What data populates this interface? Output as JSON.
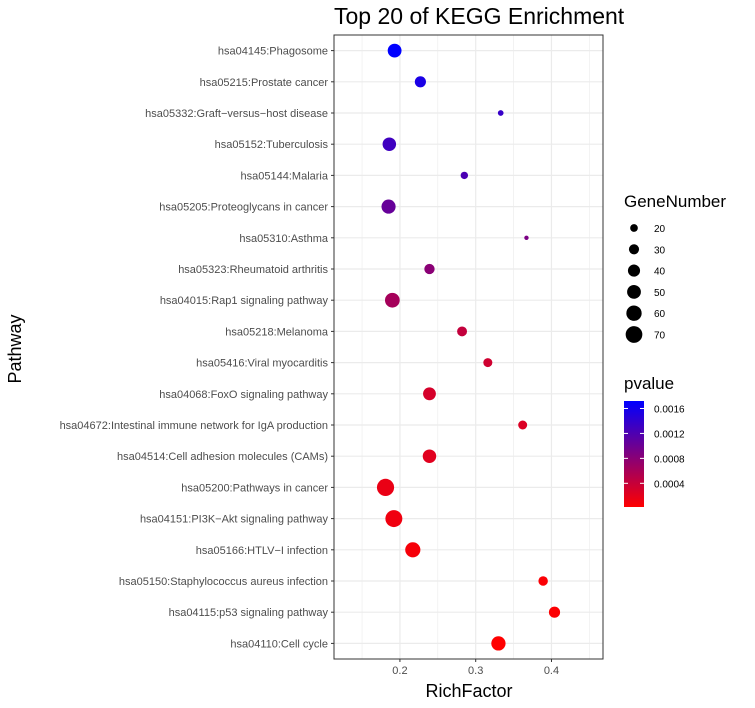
{
  "chart_data": {
    "type": "scatter",
    "title": "Top 20 of KEGG Enrichment",
    "xlabel": "RichFactor",
    "ylabel": "Pathway",
    "xlim": [
      0.113,
      0.468
    ],
    "xticks": [
      0.2,
      0.3,
      0.4
    ],
    "xtick_labels": [
      "0.2",
      "0.3",
      "0.4"
    ],
    "grid": true,
    "points": [
      {
        "pathway": "hsa04145:Phagosome",
        "rich_factor": 0.193,
        "gene_number": 50,
        "pvalue": 0.00172
      },
      {
        "pathway": "hsa05215:Prostate cancer",
        "rich_factor": 0.227,
        "gene_number": 35,
        "pvalue": 0.00155
      },
      {
        "pathway": "hsa05332:Graft−versus−host disease",
        "rich_factor": 0.333,
        "gene_number": 14,
        "pvalue": 0.00135
      },
      {
        "pathway": "hsa05152:Tuberculosis",
        "rich_factor": 0.186,
        "gene_number": 48,
        "pvalue": 0.0013
      },
      {
        "pathway": "hsa05144:Malaria",
        "rich_factor": 0.285,
        "gene_number": 19,
        "pvalue": 0.00122
      },
      {
        "pathway": "hsa05205:Proteoglycans in cancer",
        "rich_factor": 0.185,
        "gene_number": 52,
        "pvalue": 0.00104
      },
      {
        "pathway": "hsa05310:Asthma",
        "rich_factor": 0.367,
        "gene_number": 11,
        "pvalue": 0.0009
      },
      {
        "pathway": "hsa05323:Rheumatoid arthritis",
        "rich_factor": 0.239,
        "gene_number": 31,
        "pvalue": 0.0008
      },
      {
        "pathway": "hsa04015:Rap1 signaling pathway",
        "rich_factor": 0.19,
        "gene_number": 56,
        "pvalue": 0.00062
      },
      {
        "pathway": "hsa05218:Melanoma",
        "rich_factor": 0.282,
        "gene_number": 29,
        "pvalue": 0.00042
      },
      {
        "pathway": "hsa05416:Viral myocarditis",
        "rich_factor": 0.316,
        "gene_number": 25,
        "pvalue": 0.00034
      },
      {
        "pathway": "hsa04068:FoxO signaling pathway",
        "rich_factor": 0.239,
        "gene_number": 44,
        "pvalue": 0.0003
      },
      {
        "pathway": "hsa04672:Intestinal immune network for IgA production",
        "rich_factor": 0.362,
        "gene_number": 25,
        "pvalue": 0.00026
      },
      {
        "pathway": "hsa04514:Cell adhesion molecules (CAMs)",
        "rich_factor": 0.239,
        "gene_number": 48,
        "pvalue": 0.00022
      },
      {
        "pathway": "hsa05200:Pathways in cancer",
        "rich_factor": 0.181,
        "gene_number": 74,
        "pvalue": 0.00016
      },
      {
        "pathway": "hsa04151:PI3K−Akt signaling pathway",
        "rich_factor": 0.192,
        "gene_number": 72,
        "pvalue": 0.00012
      },
      {
        "pathway": "hsa05166:HTLV−I infection",
        "rich_factor": 0.217,
        "gene_number": 59,
        "pvalue": 8e-05
      },
      {
        "pathway": "hsa05150:Staphylococcus aureus infection",
        "rich_factor": 0.389,
        "gene_number": 27,
        "pvalue": 5e-05
      },
      {
        "pathway": "hsa04115:p53 signaling pathway",
        "rich_factor": 0.404,
        "gene_number": 35,
        "pvalue": 4e-05
      },
      {
        "pathway": "hsa04110:Cell cycle",
        "rich_factor": 0.33,
        "gene_number": 53,
        "pvalue": 2e-05
      }
    ],
    "legend_size": {
      "title": "GeneNumber",
      "placement": "right",
      "values": [
        20,
        30,
        40,
        50,
        60,
        70
      ],
      "labels": [
        "20",
        "30",
        "40",
        "50",
        "60",
        "70"
      ]
    },
    "legend_color": {
      "title": "pvalue",
      "placement": "right",
      "low_color": "#ff0000",
      "high_color": "#0000ff",
      "range": [
        2e-05,
        0.00172
      ],
      "ticks": [
        0.0004,
        0.0008,
        0.0012,
        0.0016
      ],
      "tick_labels": [
        "0.0004",
        "0.0008",
        "0.0012",
        "0.0016"
      ]
    },
    "panel_background": "#ffffff",
    "grid_color": "#ebebeb",
    "point_size_range": [
      8,
      75
    ]
  }
}
